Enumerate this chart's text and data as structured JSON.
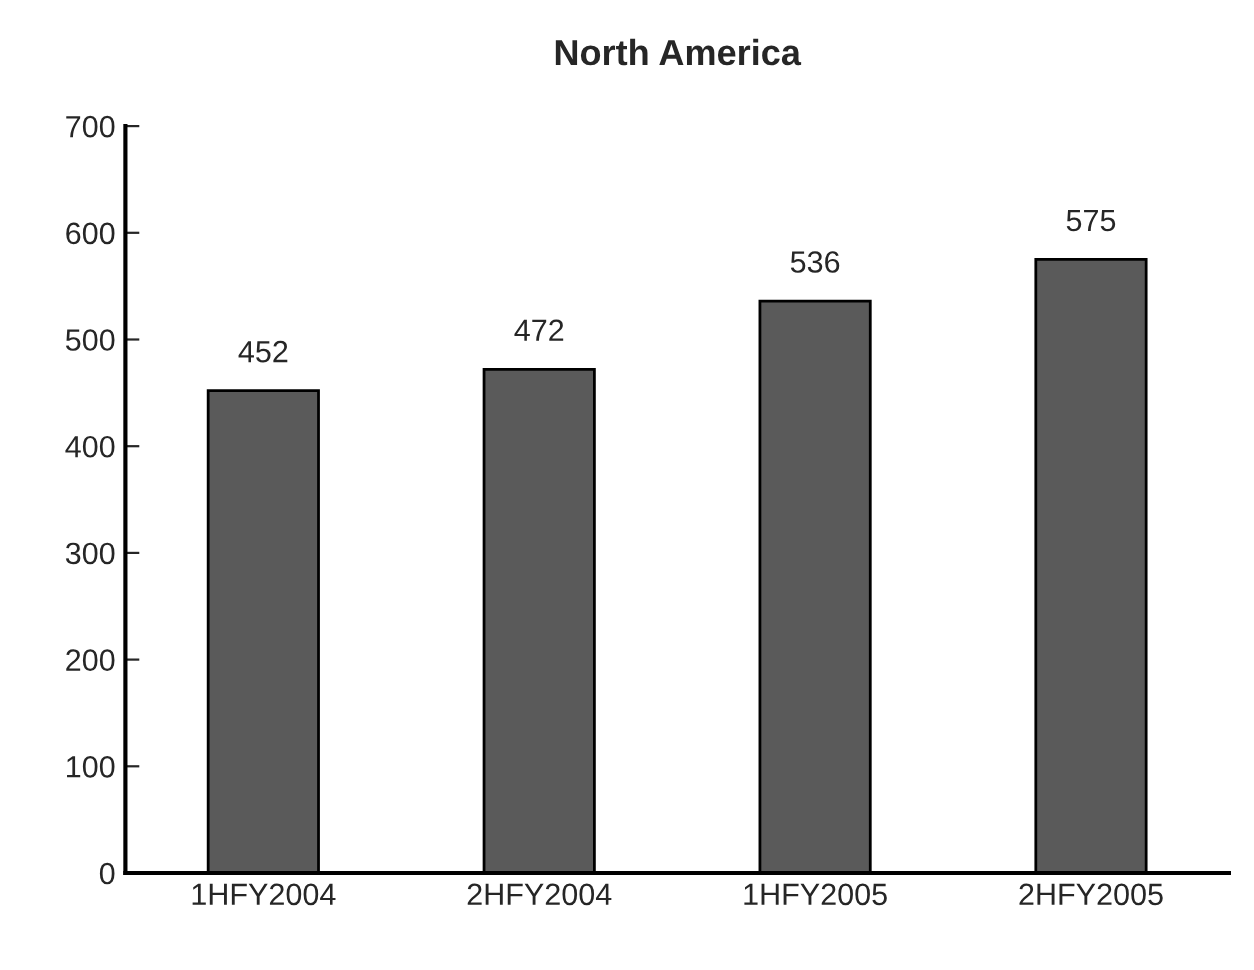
{
  "chart_data": {
    "type": "bar",
    "title": "North America",
    "categories": [
      "1HFY2004",
      "2HFY2004",
      "1HFY2005",
      "2HFY2005"
    ],
    "values": [
      452,
      472,
      536,
      575
    ],
    "color": "#5a5a5a",
    "ylim": [
      0,
      700
    ],
    "yticks": [
      0,
      100,
      200,
      300,
      400,
      500,
      600,
      700
    ],
    "grid": false,
    "data_labels": true
  }
}
